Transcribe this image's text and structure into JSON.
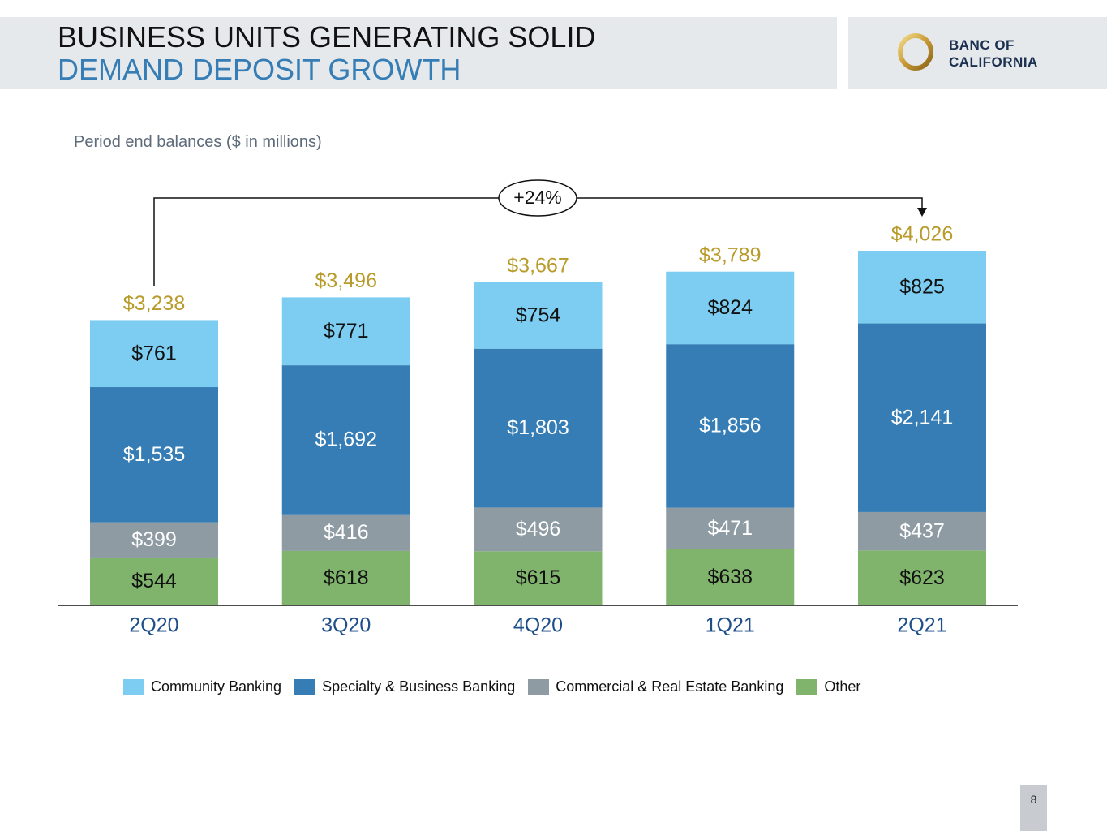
{
  "header": {
    "title_line1": "BUSINESS UNITS GENERATING SOLID",
    "title_line2": "DEMAND DEPOSIT GROWTH",
    "logo_line1": "BANC OF",
    "logo_line2": "CALIFORNIA"
  },
  "subtitle": "Period end balances ($ in millions)",
  "page_number": "8",
  "colors": {
    "community": "#7ccdf1",
    "specialty": "#357db4",
    "commercial": "#8e9ba3",
    "other": "#80b46c",
    "total_label": "#b89b2a",
    "axis_label": "#1f4f8a",
    "title_accent": "#357db4"
  },
  "chart_data": {
    "type": "bar",
    "stacked": true,
    "title": "Period end balances ($ in millions)",
    "categories": [
      "2Q20",
      "3Q20",
      "4Q20",
      "1Q21",
      "2Q21"
    ],
    "series": [
      {
        "key": "other",
        "name": "Other",
        "values": [
          544,
          618,
          615,
          638,
          623
        ],
        "labels": [
          "$544",
          "$618",
          "$615",
          "$638",
          "$623"
        ]
      },
      {
        "key": "commercial",
        "name": "Commercial & Real Estate Banking",
        "values": [
          399,
          416,
          496,
          471,
          437
        ],
        "labels": [
          "$399",
          "$416",
          "$496",
          "$471",
          "$437"
        ]
      },
      {
        "key": "specialty",
        "name": "Specialty & Business Banking",
        "values": [
          1535,
          1692,
          1803,
          1856,
          2141
        ],
        "labels": [
          "$1,535",
          "$1,692",
          "$1,803",
          "$1,856",
          "$2,141"
        ]
      },
      {
        "key": "community",
        "name": "Community Banking",
        "values": [
          761,
          771,
          754,
          824,
          825
        ],
        "labels": [
          "$761",
          "$771",
          "$754",
          "$824",
          "$825"
        ]
      }
    ],
    "totals": [
      3238,
      3496,
      3667,
      3789,
      4026
    ],
    "total_labels": [
      "$3,238",
      "$3,496",
      "$3,667",
      "$3,789",
      "$4,026"
    ],
    "growth_annotation": "+24%",
    "growth_from": "2Q20",
    "growth_to": "2Q21",
    "ylim": [
      0,
      4026
    ],
    "legend_order": [
      "Community Banking",
      "Specialty & Business Banking",
      "Commercial & Real Estate Banking",
      "Other"
    ],
    "legend_position": "bottom"
  }
}
